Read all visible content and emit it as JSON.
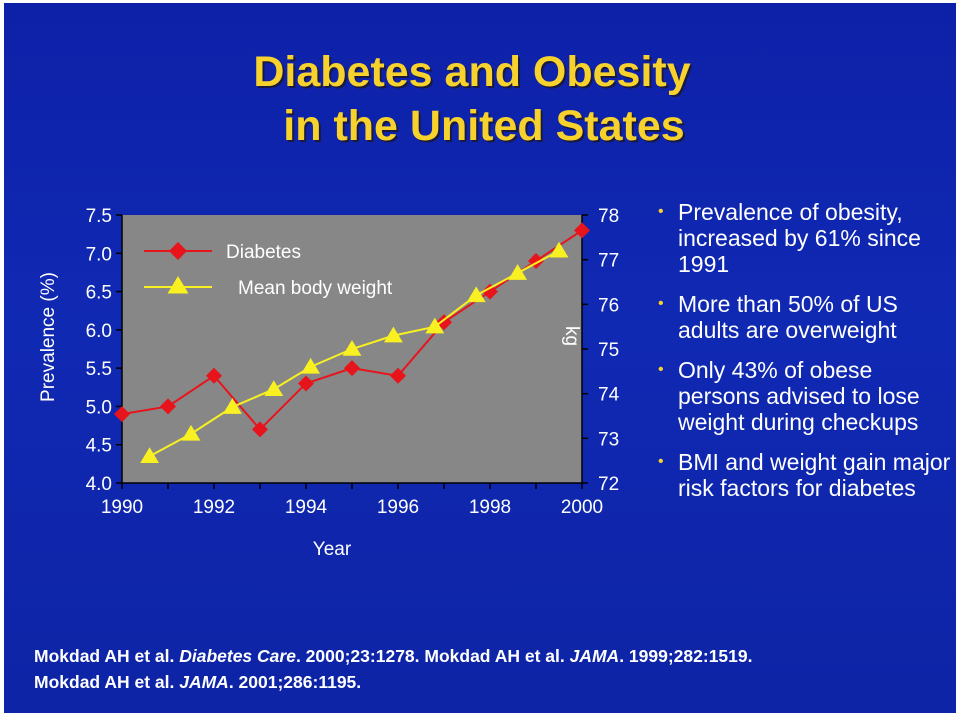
{
  "slide": {
    "title_line1": "Diabetes and Obesity",
    "title_line2": "in the United States",
    "bullets": [
      "Prevalence of obesity, increased by 61% since 1991",
      "More than 50% of US adults are overweight",
      "Only 43% of obese persons advised to lose weight during checkups",
      "BMI and weight gain major risk factors for diabetes"
    ],
    "citation": {
      "line1": [
        {
          "text": "Mokdad AH et al. ",
          "italic": false
        },
        {
          "text": "Diabetes Care",
          "italic": true
        },
        {
          "text": ". 2000;23:1278. Mokdad AH et al. ",
          "italic": false
        },
        {
          "text": "JAMA",
          "italic": true
        },
        {
          "text": ". 1999;282:1519.",
          "italic": false
        }
      ],
      "line2": [
        {
          "text": "Mokdad AH et al. ",
          "italic": false
        },
        {
          "text": "JAMA",
          "italic": true
        },
        {
          "text": ". 2001;286:1195.",
          "italic": false
        }
      ]
    }
  },
  "chart_data": {
    "type": "line",
    "title": "",
    "xlabel": "Year",
    "ylabel": "Prevalence (%)",
    "y2label": "kg",
    "xlim": [
      1990,
      2000
    ],
    "ylim": [
      4.0,
      7.5
    ],
    "y2lim": [
      72,
      78
    ],
    "x_ticks": [
      "1990",
      "1992",
      "1994",
      "1996",
      "1998",
      "2000"
    ],
    "y_ticks": [
      "4.0",
      "4.5",
      "5.0",
      "5.5",
      "6.0",
      "6.5",
      "7.0",
      "7.5"
    ],
    "y2_ticks": [
      "72",
      "73",
      "74",
      "75",
      "76",
      "77",
      "78"
    ],
    "grid": false,
    "legend": "top-left",
    "series": [
      {
        "name": "Diabetes",
        "axis": "left",
        "color": "#e8141c",
        "marker": "diamond",
        "x": [
          1990,
          1991,
          1992,
          1993,
          1994,
          1995,
          1996,
          1997,
          1998,
          1999,
          2000
        ],
        "values": [
          4.9,
          5.0,
          5.4,
          4.7,
          5.3,
          5.5,
          5.4,
          6.1,
          6.5,
          6.9,
          7.3
        ]
      },
      {
        "name": "Mean body weight",
        "axis": "right",
        "color": "#f8f020",
        "marker": "triangle",
        "x": [
          1990.6,
          1991.5,
          1992.4,
          1993.3,
          1994.1,
          1995.0,
          1995.9,
          1996.8,
          1997.7,
          1998.6,
          1999.5
        ],
        "values": [
          72.6,
          73.1,
          73.7,
          74.1,
          74.6,
          75.0,
          75.3,
          75.5,
          76.2,
          76.7,
          77.2
        ]
      }
    ]
  }
}
